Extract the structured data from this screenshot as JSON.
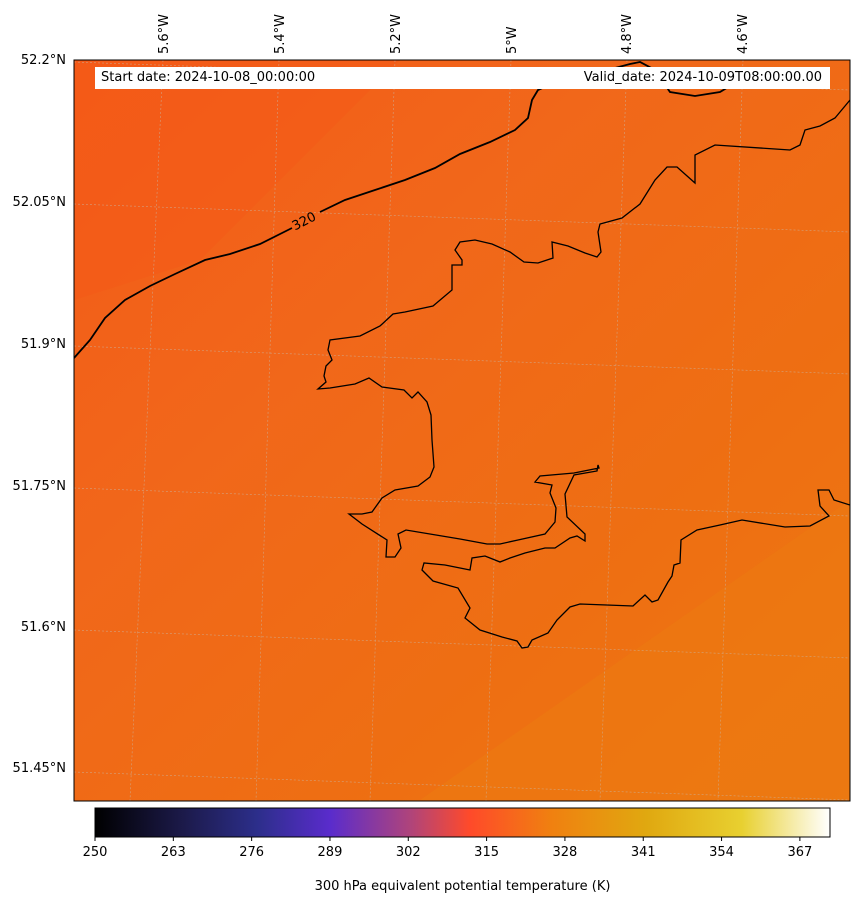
{
  "map": {
    "field_colors": [
      "#f45a18",
      "#f1671a",
      "#ee6f12",
      "#ec7510"
    ],
    "coast_color": "#000000",
    "contour_color": "#000000"
  },
  "header": {
    "start_date": "Start date: 2024-10-08_00:00:00",
    "valid_date": "Valid_date: 2024-10-09T08:00:00.00"
  },
  "lon_ticks": [
    "5.6°W",
    "5.4°W",
    "5.2°W",
    "5°W",
    "4.8°W",
    "4.6°W"
  ],
  "lat_ticks": [
    "52.2°N",
    "52.05°N",
    "51.9°N",
    "51.75°N",
    "51.6°N",
    "51.45°N"
  ],
  "contour": {
    "label": "320"
  },
  "colorbar": {
    "label": "300 hPa equivalent potential temperature (K)",
    "ticks": [
      "250",
      "263",
      "276",
      "289",
      "302",
      "315",
      "328",
      "341",
      "354",
      "367"
    ],
    "range": [
      250,
      372
    ],
    "stops": [
      "#000000",
      "#1c1a4a",
      "#2c2e8a",
      "#5a2ccc",
      "#b0447a",
      "#ff4a2a",
      "#f08010",
      "#e0a810",
      "#e8d030",
      "#ffffff"
    ]
  }
}
